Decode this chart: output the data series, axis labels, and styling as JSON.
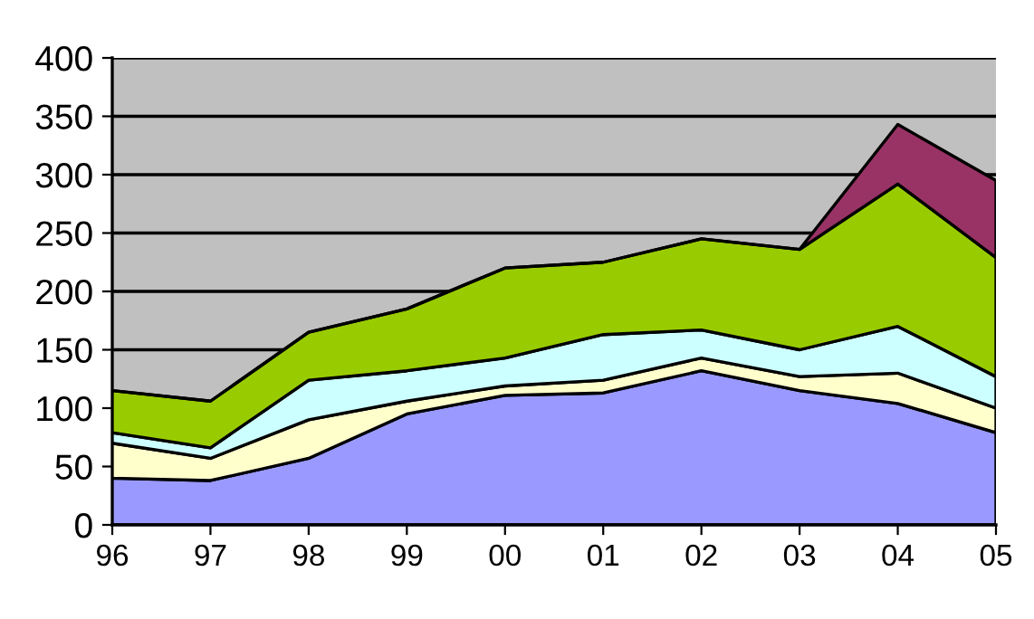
{
  "chart_data": {
    "type": "area",
    "stacked": true,
    "categories": [
      "96",
      "97",
      "98",
      "99",
      "00",
      "01",
      "02",
      "03",
      "04",
      "05"
    ],
    "series": [
      {
        "color": "#9999ff",
        "values": [
          40,
          38,
          57,
          95,
          111,
          113,
          132,
          115,
          104,
          79
        ]
      },
      {
        "color": "#ffffcc",
        "values": [
          30,
          19,
          33,
          11,
          8,
          11,
          11,
          12,
          26,
          21
        ]
      },
      {
        "color": "#ccffff",
        "values": [
          9,
          9,
          34,
          26,
          24,
          39,
          24,
          23,
          40,
          27
        ]
      },
      {
        "color": "#99cc00",
        "values": [
          36,
          40,
          41,
          53,
          77,
          62,
          78,
          86,
          122,
          102
        ]
      },
      {
        "color": "#993366",
        "values": [
          0,
          0,
          0,
          0,
          0,
          0,
          0,
          0,
          51,
          66
        ]
      }
    ],
    "ylim": [
      0,
      400
    ],
    "yticks": [
      0,
      50,
      100,
      150,
      200,
      250,
      300,
      350,
      400
    ],
    "grid": "y",
    "legend": false
  }
}
